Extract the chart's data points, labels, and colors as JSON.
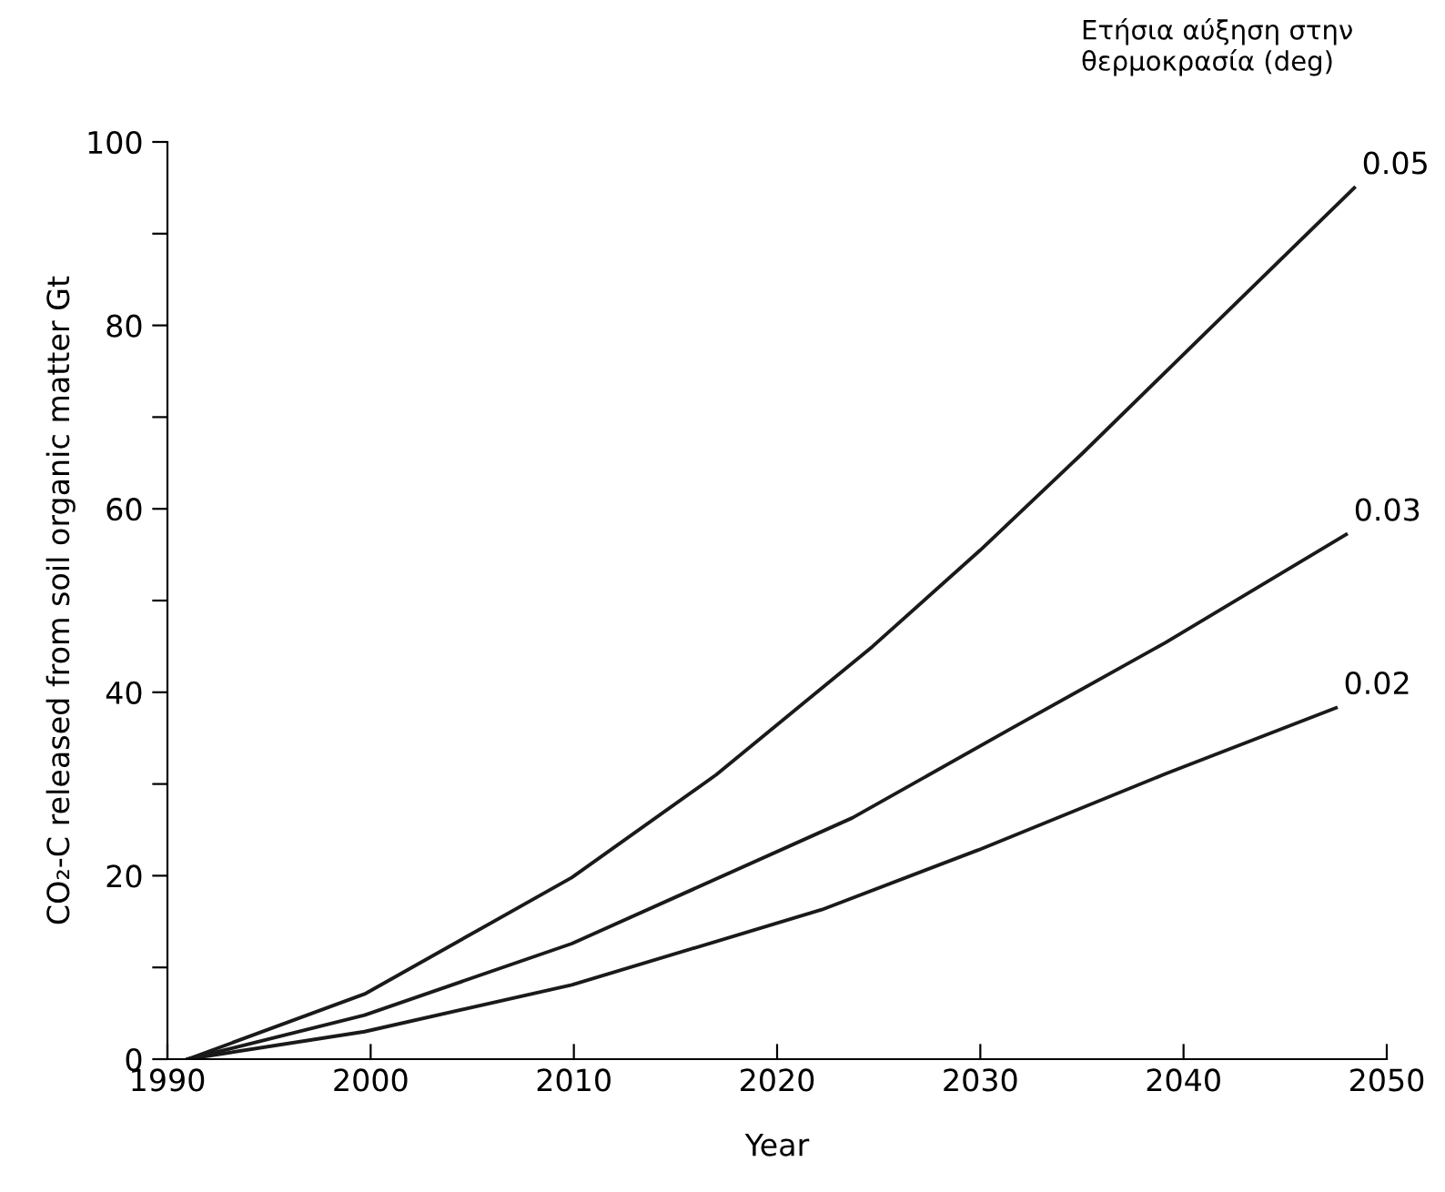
{
  "chart_data": {
    "type": "line",
    "xlabel": "Year",
    "ylabel": "CO₂-C released from soil organic matter Gt",
    "legend_title": "Ετήσια αύξηση στην\nθερμοκρασία (deg)",
    "xlim": [
      1990,
      2050
    ],
    "ylim": [
      0,
      100
    ],
    "xticks": [
      1990,
      2000,
      2010,
      2020,
      2030,
      2040,
      2050
    ],
    "yticks": [
      0,
      {
        "value": 10,
        "label": null
      },
      20,
      {
        "value": 30,
        "label": null
      },
      40,
      {
        "value": 50,
        "label": null
      },
      60,
      {
        "value": 70,
        "label": null
      },
      80,
      {
        "value": 90,
        "label": null
      },
      100
    ],
    "grid": false,
    "legend": false,
    "marker": "none",
    "line_style": "solid",
    "series": [
      {
        "name": "0.05",
        "color": "#1a1a1a",
        "x": [
          1991,
          1999.7,
          2009.9,
          2017,
          2024.7,
          2030,
          2035,
          2041,
          2048.4
        ],
        "values": [
          0,
          7.1,
          19.8,
          31,
          45,
          55.5,
          66,
          79,
          95
        ]
      },
      {
        "name": "0.03",
        "color": "#1a1a1a",
        "x": [
          1991,
          1999.7,
          2009.9,
          2023.7,
          2031.4,
          2039.1,
          2048
        ],
        "values": [
          0,
          4.8,
          12.6,
          26.3,
          35.9,
          45.4,
          57.2
        ]
      },
      {
        "name": "0.02",
        "color": "#1a1a1a",
        "x": [
          1991,
          1999.7,
          2009.9,
          2022.2,
          2029.9,
          2039.1,
          2047.5
        ],
        "values": [
          0,
          3,
          8.1,
          16.3,
          22.8,
          31.1,
          38.3
        ]
      }
    ]
  }
}
